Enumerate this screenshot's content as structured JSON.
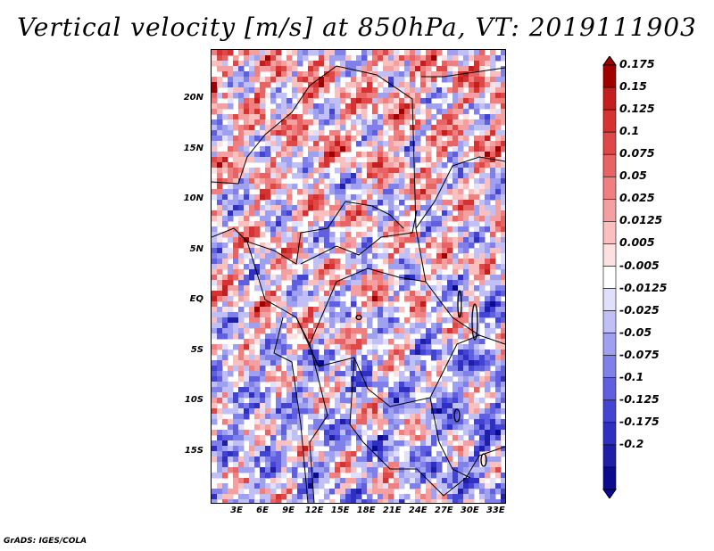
{
  "title": "Vertical velocity [m/s] at 850hPa, VT: 2019111903",
  "footer": "GrADS: IGES/COLA",
  "map": {
    "lat_labels": [
      "20N",
      "15N",
      "10N",
      "5N",
      "EQ",
      "5S",
      "10S",
      "15S"
    ],
    "lat_values": [
      20,
      15,
      10,
      5,
      0,
      -5,
      -10,
      -15
    ],
    "lon_labels": [
      "3E",
      "6E",
      "9E",
      "12E",
      "15E",
      "18E",
      "21E",
      "24E",
      "27E",
      "30E",
      "33E"
    ],
    "lon_values": [
      3,
      6,
      9,
      12,
      15,
      18,
      21,
      24,
      27,
      30,
      33
    ],
    "extent": {
      "lon_min": 0,
      "lon_max": 34,
      "lat_min": -20,
      "lat_max": 25
    }
  },
  "colorbar": {
    "labels": [
      "0.175",
      "0.15",
      "0.125",
      "0.1",
      "0.075",
      "0.05",
      "0.025",
      "0.0125",
      "0.005",
      "-0.005",
      "-0.0125",
      "-0.025",
      "-0.05",
      "-0.075",
      "-0.1",
      "-0.125",
      "-0.175",
      "-0.2"
    ],
    "colors": [
      "#a00000",
      "#c41e1e",
      "#d63232",
      "#e04848",
      "#e86464",
      "#f08080",
      "#f5a0a0",
      "#fac0c0",
      "#fde0e0",
      "#ffffff",
      "#e0e0fc",
      "#c0c0f6",
      "#a0a0f0",
      "#8080ea",
      "#5f5fe0",
      "#4444d4",
      "#2f2fc4",
      "#1e1ea8",
      "#0a0a90"
    ]
  }
}
